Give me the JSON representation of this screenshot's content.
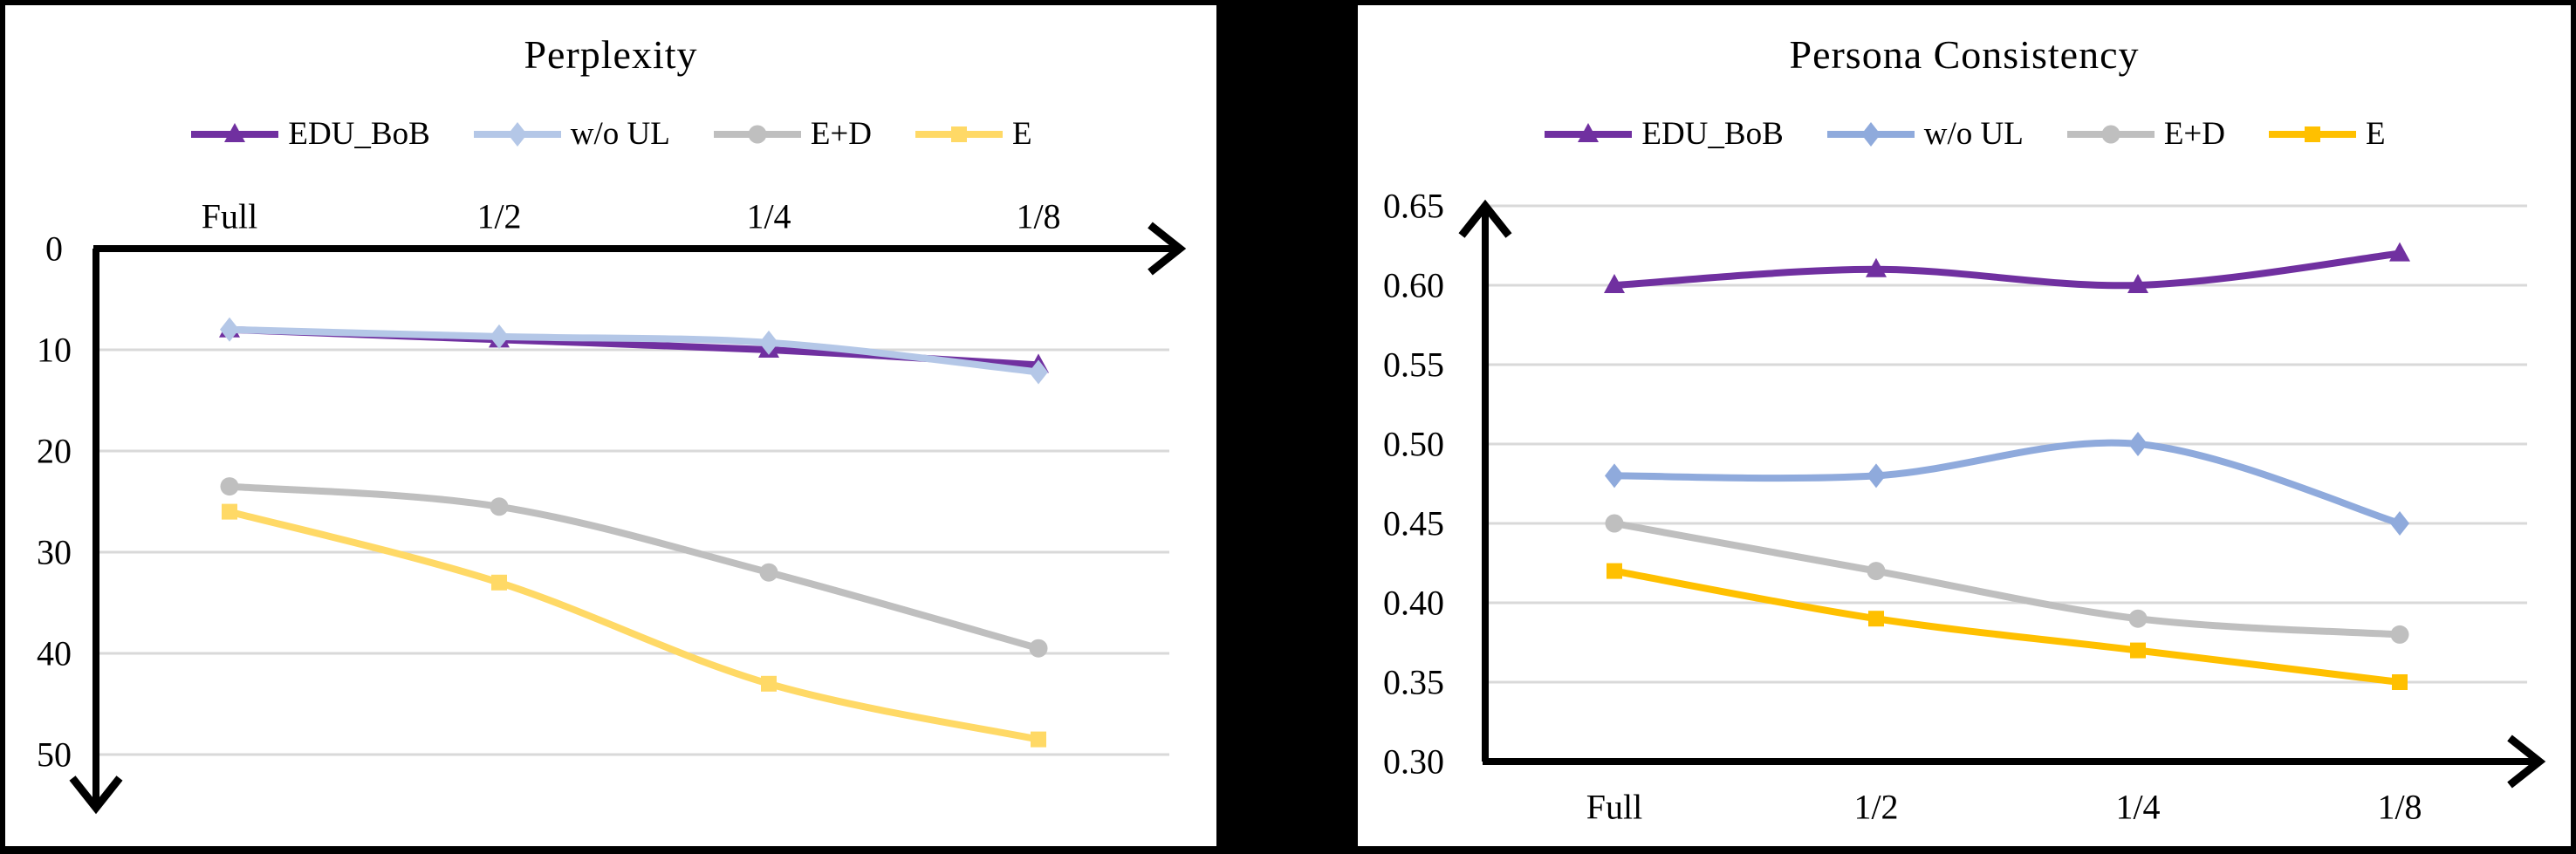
{
  "page": {
    "background": "#000000",
    "panel_background": "#ffffff",
    "gridline_color": "#D9D9D9",
    "axis_color": "#000000"
  },
  "chart_data": [
    {
      "type": "line",
      "title": "Perplexity",
      "categories": [
        "Full",
        "1/2",
        "1/4",
        "1/8"
      ],
      "x_axis_position": "top",
      "legend_position": "top",
      "grid": true,
      "y_axis": {
        "direction": "increasing-downward",
        "min": 0,
        "max": 50,
        "ticks": [
          0,
          10,
          20,
          30,
          40,
          50
        ],
        "tick_labels": [
          "0",
          "10",
          "20",
          "30",
          "40",
          "50"
        ]
      },
      "series": [
        {
          "name": "EDU_BoB",
          "color": "#7030A0",
          "marker": "triangle",
          "values": [
            8,
            9,
            10,
            11.5
          ]
        },
        {
          "name": "w/o UL",
          "color": "#B4C7E7",
          "marker": "diamond",
          "values": [
            8,
            8.7,
            9.3,
            12.2
          ]
        },
        {
          "name": "E+D",
          "color": "#BFBFBF",
          "marker": "circle",
          "values": [
            23.5,
            25.5,
            32,
            39.5
          ]
        },
        {
          "name": "E",
          "color": "#FFD966",
          "marker": "square",
          "values": [
            26,
            33,
            43,
            48.5
          ]
        }
      ]
    },
    {
      "type": "line",
      "title": "Persona Consistency",
      "categories": [
        "Full",
        "1/2",
        "1/4",
        "1/8"
      ],
      "x_axis_position": "bottom",
      "legend_position": "top",
      "grid": true,
      "y_axis": {
        "direction": "increasing-upward",
        "min": 0.3,
        "max": 0.65,
        "ticks": [
          0.3,
          0.35,
          0.4,
          0.45,
          0.5,
          0.55,
          0.6,
          0.65
        ],
        "tick_labels": [
          "0.30",
          "0.35",
          "0.40",
          "0.45",
          "0.50",
          "0.55",
          "0.60",
          "0.65"
        ]
      },
      "series": [
        {
          "name": "EDU_BoB",
          "color": "#7030A0",
          "marker": "triangle",
          "values": [
            0.6,
            0.61,
            0.6,
            0.62
          ]
        },
        {
          "name": "w/o UL",
          "color": "#8FAADC",
          "marker": "diamond",
          "values": [
            0.48,
            0.48,
            0.5,
            0.45
          ]
        },
        {
          "name": "E+D",
          "color": "#BFBFBF",
          "marker": "circle",
          "values": [
            0.45,
            0.42,
            0.39,
            0.38
          ]
        },
        {
          "name": "E",
          "color": "#FFC000",
          "marker": "square",
          "values": [
            0.42,
            0.39,
            0.37,
            0.35
          ]
        }
      ]
    }
  ]
}
